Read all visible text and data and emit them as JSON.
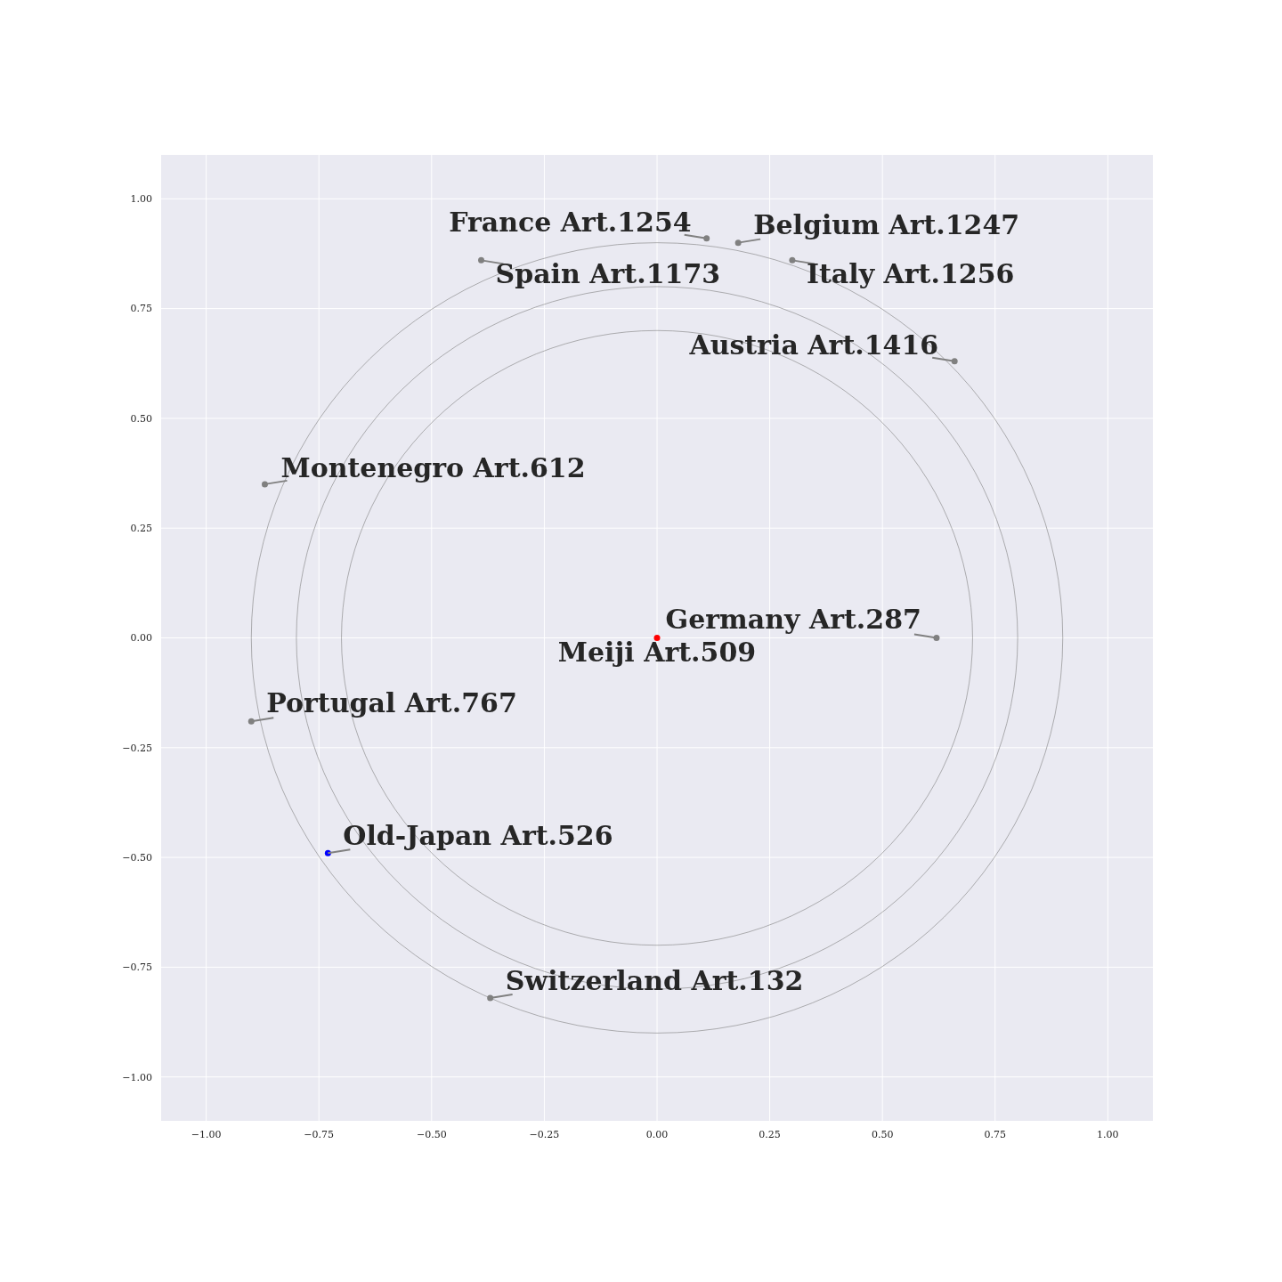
{
  "chart_data": {
    "type": "scatter",
    "xlim": [
      -1.1,
      1.1
    ],
    "ylim": [
      -1.1,
      1.1
    ],
    "xticks": [
      {
        "value": -1,
        "label": "−1.00"
      },
      {
        "value": -0.75,
        "label": "−0.75"
      },
      {
        "value": -0.5,
        "label": "−0.50"
      },
      {
        "value": -0.25,
        "label": "−0.25"
      },
      {
        "value": 0,
        "label": "0.00"
      },
      {
        "value": 0.25,
        "label": "0.25"
      },
      {
        "value": 0.5,
        "label": "0.50"
      },
      {
        "value": 0.75,
        "label": "0.75"
      },
      {
        "value": 1,
        "label": "1.00"
      }
    ],
    "yticks": [
      {
        "value": -1,
        "label": "−1.00"
      },
      {
        "value": -0.75,
        "label": "−0.75"
      },
      {
        "value": -0.5,
        "label": "−0.50"
      },
      {
        "value": -0.25,
        "label": "−0.25"
      },
      {
        "value": 0,
        "label": "0.00"
      },
      {
        "value": 0.25,
        "label": "0.25"
      },
      {
        "value": 0.5,
        "label": "0.50"
      },
      {
        "value": 0.75,
        "label": "0.75"
      },
      {
        "value": 1,
        "label": "1.00"
      }
    ],
    "grid": true,
    "series": [
      {
        "type": "scatter",
        "marker": "circle",
        "x": [
          0.11,
          0.18,
          0.3,
          -0.39,
          0.66,
          -0.87,
          0.62,
          0,
          -0.9,
          -0.73,
          -0.37
        ],
        "values": [
          0.91,
          0.9,
          0.86,
          0.86,
          0.63,
          0.35,
          0,
          0,
          -0.19,
          -0.49,
          -0.82
        ],
        "colors": [
          "#808080",
          "#808080",
          "#808080",
          "#808080",
          "#808080",
          "#808080",
          "#808080",
          "#ff0000",
          "#808080",
          "#0000ff",
          "#808080"
        ]
      }
    ],
    "annotations": [
      {
        "text": "France Art.1254",
        "x": 0.11,
        "y": 0.91
      },
      {
        "text": "Belgium Art.1247",
        "x": 0.18,
        "y": 0.9
      },
      {
        "text": "Italy Art.1256",
        "x": 0.3,
        "y": 0.86
      },
      {
        "text": "Spain Art.1173",
        "x": -0.39,
        "y": 0.86
      },
      {
        "text": "Austria Art.1416",
        "x": 0.66,
        "y": 0.63
      },
      {
        "text": "Montenegro Art.612",
        "x": -0.87,
        "y": 0.35
      },
      {
        "text": "Germany Art.287",
        "x": 0.62,
        "y": 0
      },
      {
        "text": "Meiji Art.509",
        "x": 0,
        "y": 0
      },
      {
        "text": "Portugal Art.767",
        "x": -0.9,
        "y": -0.19
      },
      {
        "text": "Old-Japan Art.526",
        "x": -0.73,
        "y": -0.49
      },
      {
        "text": "Switzerland Art.132",
        "x": -0.37,
        "y": -0.82
      }
    ]
  }
}
